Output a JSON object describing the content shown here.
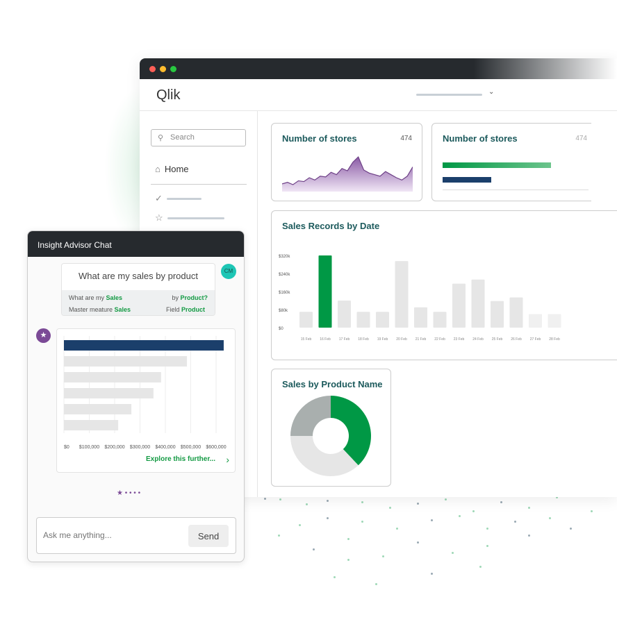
{
  "app": {
    "logo": "Qlik",
    "colors": {
      "green": "#009845",
      "navy": "#1b3f6b",
      "purple": "#7b4a96"
    }
  },
  "sidebar": {
    "search_placeholder": "Search",
    "home": "Home",
    "icons": [
      "check-circle-icon",
      "star-icon"
    ]
  },
  "kpi1": {
    "title": "Number of stores",
    "value": "474"
  },
  "kpi2": {
    "title": "Number of stores",
    "value": "474",
    "bars": [
      1.0,
      0.45
    ]
  },
  "sales_by_date": {
    "title": "Sales Records by Date"
  },
  "sales_by_product": {
    "title": "Sales by Product Name"
  },
  "chart_data": [
    {
      "type": "bar",
      "title": "Sales Records by Date",
      "categories": [
        "15 Feb",
        "16 Feb",
        "17 Feb",
        "18 Feb",
        "19 Feb",
        "20 Feb",
        "21 Feb",
        "22 Feb",
        "23 Feb",
        "24 Feb",
        "25 Feb",
        "26 Feb",
        "27 Feb",
        "28 Feb"
      ],
      "values": [
        70000,
        320000,
        120000,
        70000,
        70000,
        295000,
        90000,
        70000,
        195000,
        213000,
        118000,
        134000,
        60000,
        60000
      ],
      "yticks": [
        "$0",
        "$80k",
        "$160k",
        "$240k",
        "$320k"
      ],
      "ylim": [
        0,
        320000
      ],
      "highlight": "16 Feb"
    },
    {
      "type": "pie",
      "title": "Sales by Product Name",
      "donut": true,
      "values": [
        38,
        37,
        25
      ],
      "colors": [
        "#009845",
        "#e6e6e6",
        "#a9afae"
      ]
    },
    {
      "type": "bar",
      "orientation": "horizontal",
      "values": [
        630000,
        485000,
        383000,
        353000,
        266000,
        214000
      ],
      "xticks": [
        "$0",
        "$100,000",
        "$200,000",
        "$300,000",
        "$400,000",
        "$500,000",
        "$600,000"
      ],
      "xlim": [
        0,
        600000
      ]
    },
    {
      "type": "area",
      "values": [
        10,
        12,
        9,
        14,
        13,
        18,
        15,
        20,
        19,
        25,
        22,
        30,
        27,
        38,
        45,
        28,
        24,
        22,
        20,
        26,
        22,
        18,
        15,
        20,
        32
      ]
    }
  ],
  "chat": {
    "title": "Insight Advisor Chat",
    "question": "What are my sales by product",
    "avatar": "CM",
    "interp": {
      "l1a": "What are my ",
      "l1b": "Sales",
      "l1c": "by ",
      "l1d": "Product?",
      "l2a": "Master meature ",
      "l2b": "Sales",
      "l2c": "Field ",
      "l2d": "Product"
    },
    "explore": "Explore this further...",
    "input_placeholder": "Ask me anything...",
    "send": "Send"
  }
}
